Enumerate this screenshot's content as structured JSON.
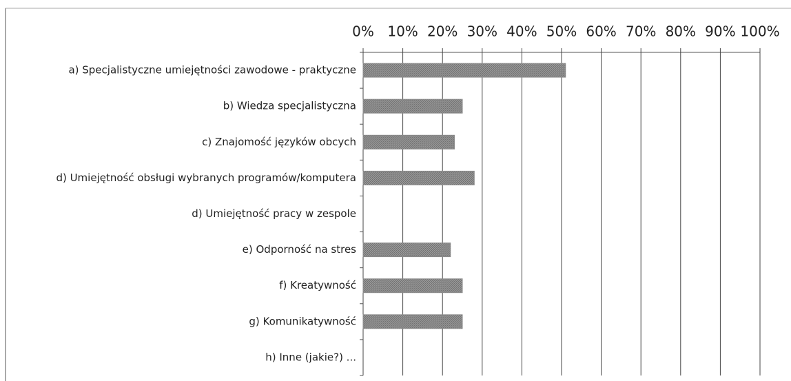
{
  "chart_data": {
    "type": "bar",
    "orientation": "horizontal",
    "categories": [
      "a) Specjalistyczne umiejętności zawodowe - praktyczne",
      "b) Wiedza specjalistyczna",
      "c) Znajomość języków obcych",
      "d) Umiejętność obsługi wybranych programów/komputera",
      "d) Umiejętność pracy w zespole",
      "e) Odporność na stres",
      "f) Kreatywność",
      "g) Komunikatywność",
      "h) Inne (jakie?) ..."
    ],
    "values": [
      51,
      25,
      23,
      28,
      0,
      22,
      25,
      25,
      0
    ],
    "color": "#8a8a8a",
    "xlim": [
      0,
      100
    ],
    "xticks": [
      {
        "value": 0,
        "label": "0%"
      },
      {
        "value": 10,
        "label": "10%"
      },
      {
        "value": 20,
        "label": "20%"
      },
      {
        "value": 30,
        "label": "30%"
      },
      {
        "value": 40,
        "label": "40%"
      },
      {
        "value": 50,
        "label": "50%"
      },
      {
        "value": 60,
        "label": "60%"
      },
      {
        "value": 70,
        "label": "70%"
      },
      {
        "value": 80,
        "label": "80%"
      },
      {
        "value": 90,
        "label": "90%"
      },
      {
        "value": 100,
        "label": "100%"
      }
    ],
    "grid": true
  }
}
